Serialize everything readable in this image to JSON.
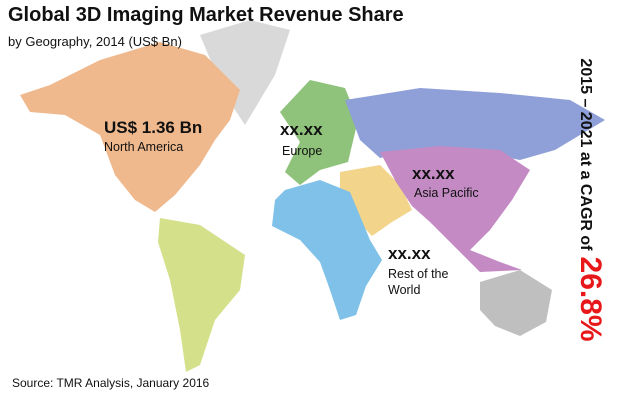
{
  "header": {
    "title": "Global 3D Imaging Market Revenue Share",
    "subtitle": "by Geography, 2014 (US$ Bn)"
  },
  "regions": [
    {
      "value": "US$ 1.36 Bn",
      "name": "North America"
    },
    {
      "value": "xx.xx",
      "name": "Europe"
    },
    {
      "value": "xx.xx",
      "name": "Asia Pacific"
    },
    {
      "value": "xx.xx",
      "name": "Rest of the World"
    }
  ],
  "cagr": {
    "text": "2015 – 2021 at a CAGR of",
    "value": "26.8%"
  },
  "source": "Source: TMR Analysis, January 2016"
}
